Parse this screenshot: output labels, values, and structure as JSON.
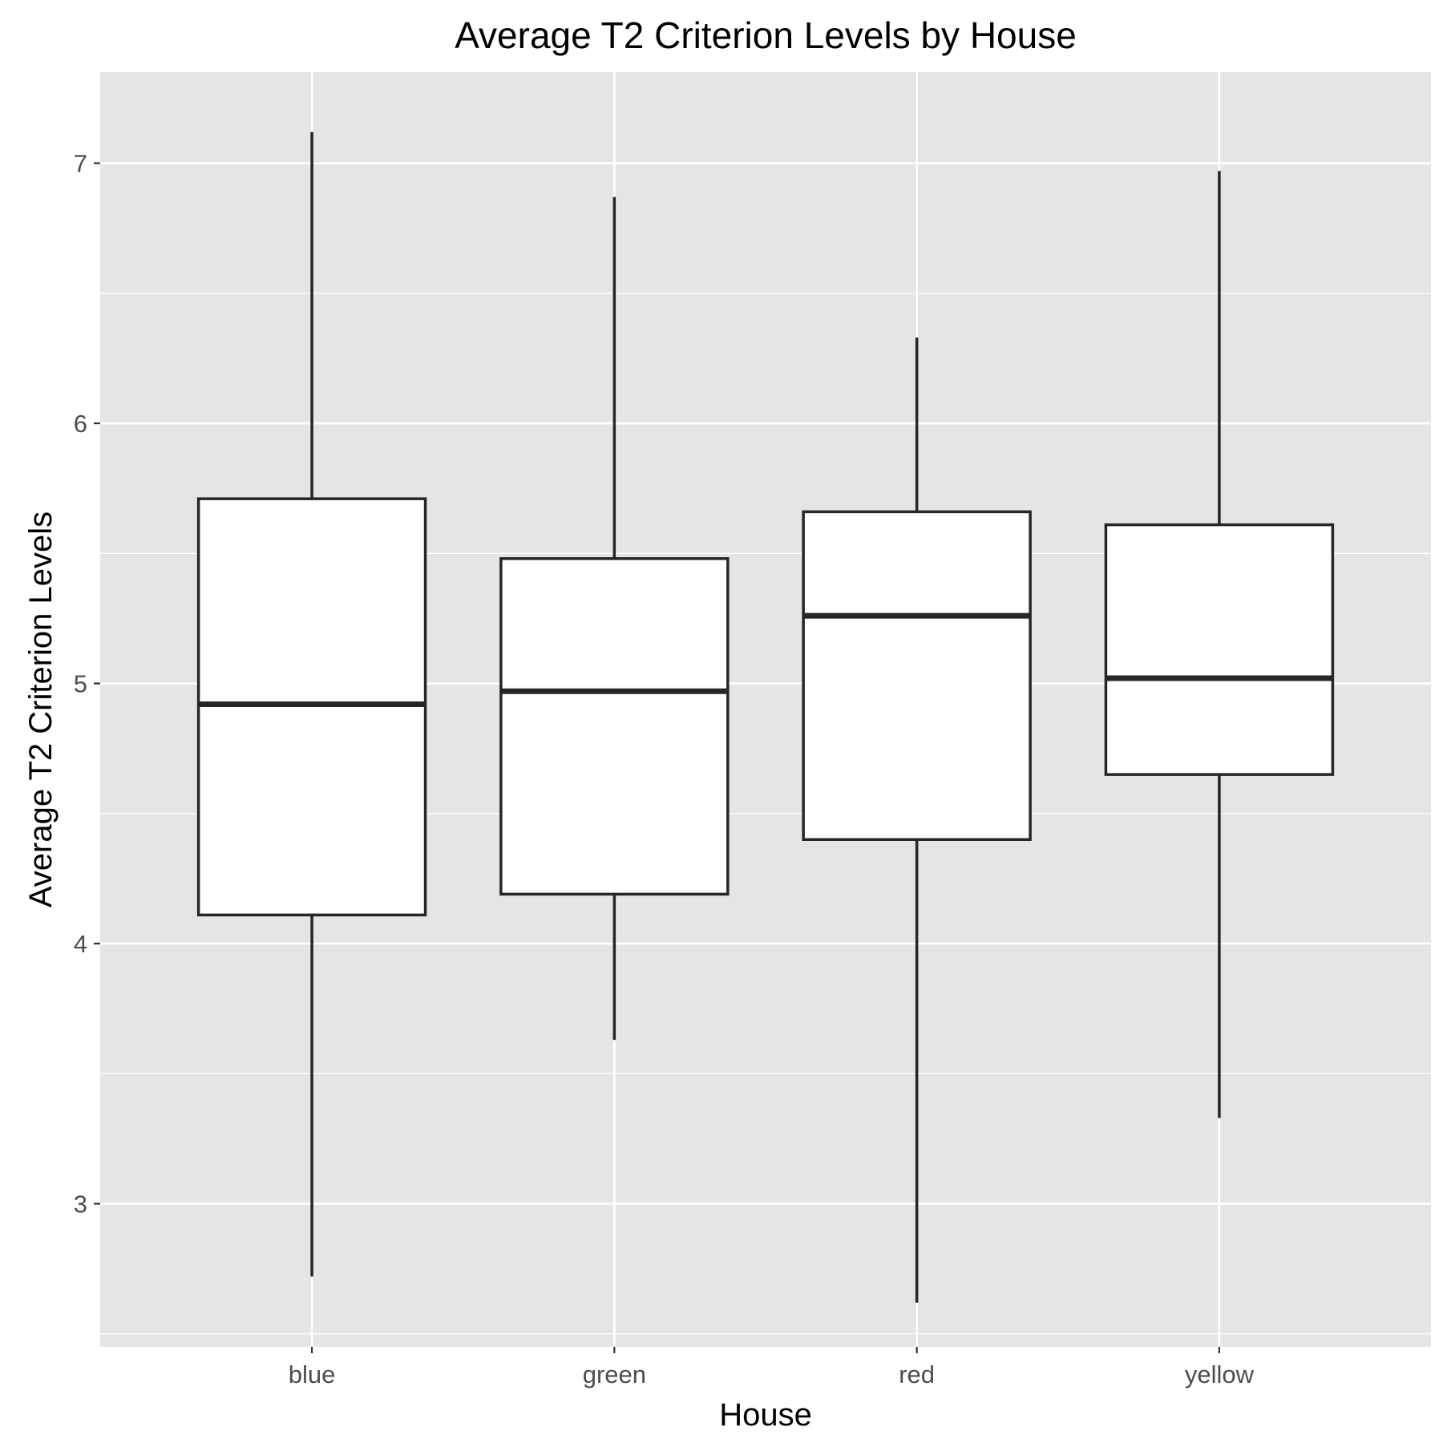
{
  "chart_data": {
    "type": "boxplot",
    "title": "Average T2 Criterion Levels by House",
    "xlabel": "House",
    "ylabel": "Average T2 Criterion Levels",
    "categories": [
      "blue",
      "green",
      "red",
      "yellow"
    ],
    "boxes": [
      {
        "category": "blue",
        "whisker_low": 2.72,
        "q1": 4.11,
        "median": 4.92,
        "q3": 5.71,
        "whisker_high": 7.12
      },
      {
        "category": "green",
        "whisker_low": 3.63,
        "q1": 4.19,
        "median": 4.97,
        "q3": 5.48,
        "whisker_high": 6.87
      },
      {
        "category": "red",
        "whisker_low": 2.62,
        "q1": 4.4,
        "median": 5.26,
        "q3": 5.66,
        "whisker_high": 6.33
      },
      {
        "category": "yellow",
        "whisker_low": 3.33,
        "q1": 4.65,
        "median": 5.02,
        "q3": 5.61,
        "whisker_high": 6.97
      }
    ],
    "yticks": [
      3,
      4,
      5,
      6,
      7
    ],
    "ylim": [
      2.45,
      7.35
    ],
    "grid": true,
    "colors": {
      "panel_background": "#e5e5e5",
      "grid_line": "#ffffff",
      "box_fill": "#ffffff",
      "box_stroke": "#262626",
      "tick_text": "#4d4d4d"
    }
  }
}
